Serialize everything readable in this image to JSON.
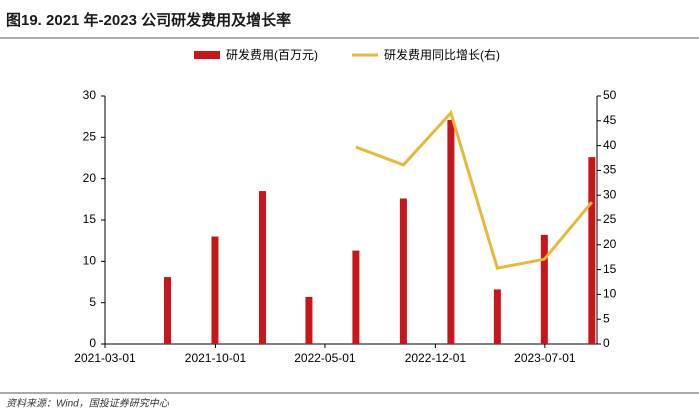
{
  "chart_data": {
    "type": "bar_line",
    "title": "图19. 2021 年-2023 公司研发费用及增长率",
    "source": "资料来源：Wind，国投证券研究中心",
    "x": [
      "2021-06-30",
      "2021-09-30",
      "2021-12-31",
      "2022-03-31",
      "2022-06-30",
      "2022-09-30",
      "2022-12-31",
      "2023-03-31",
      "2023-06-30",
      "2023-09-30"
    ],
    "xlim": [
      "2021-03-01",
      "2023-10-10"
    ],
    "xticks": [
      "2021-03-01",
      "2021-10-01",
      "2022-05-01",
      "2022-12-01",
      "2023-07-01"
    ],
    "ylim": [
      0,
      30
    ],
    "yticks": [
      0,
      5,
      10,
      15,
      20,
      25,
      30
    ],
    "y2lim": [
      0,
      50
    ],
    "y2ticks": [
      0,
      5,
      10,
      15,
      20,
      25,
      30,
      35,
      40,
      45,
      50
    ],
    "legend": "top",
    "series": [
      {
        "name": "研发费用(百万元)",
        "type": "bar",
        "color": "#c8161d",
        "values": [
          8.1,
          13,
          18.5,
          5.7,
          11.3,
          17.6,
          27.1,
          6.6,
          13.2,
          22.6
        ]
      },
      {
        "name": "研发费用同比增长(右)",
        "type": "line",
        "axis": "y2",
        "color": "#e8b83a",
        "values": [
          null,
          null,
          null,
          null,
          39.7,
          36.1,
          46.6,
          15.3,
          17.1,
          28.6
        ]
      }
    ]
  }
}
